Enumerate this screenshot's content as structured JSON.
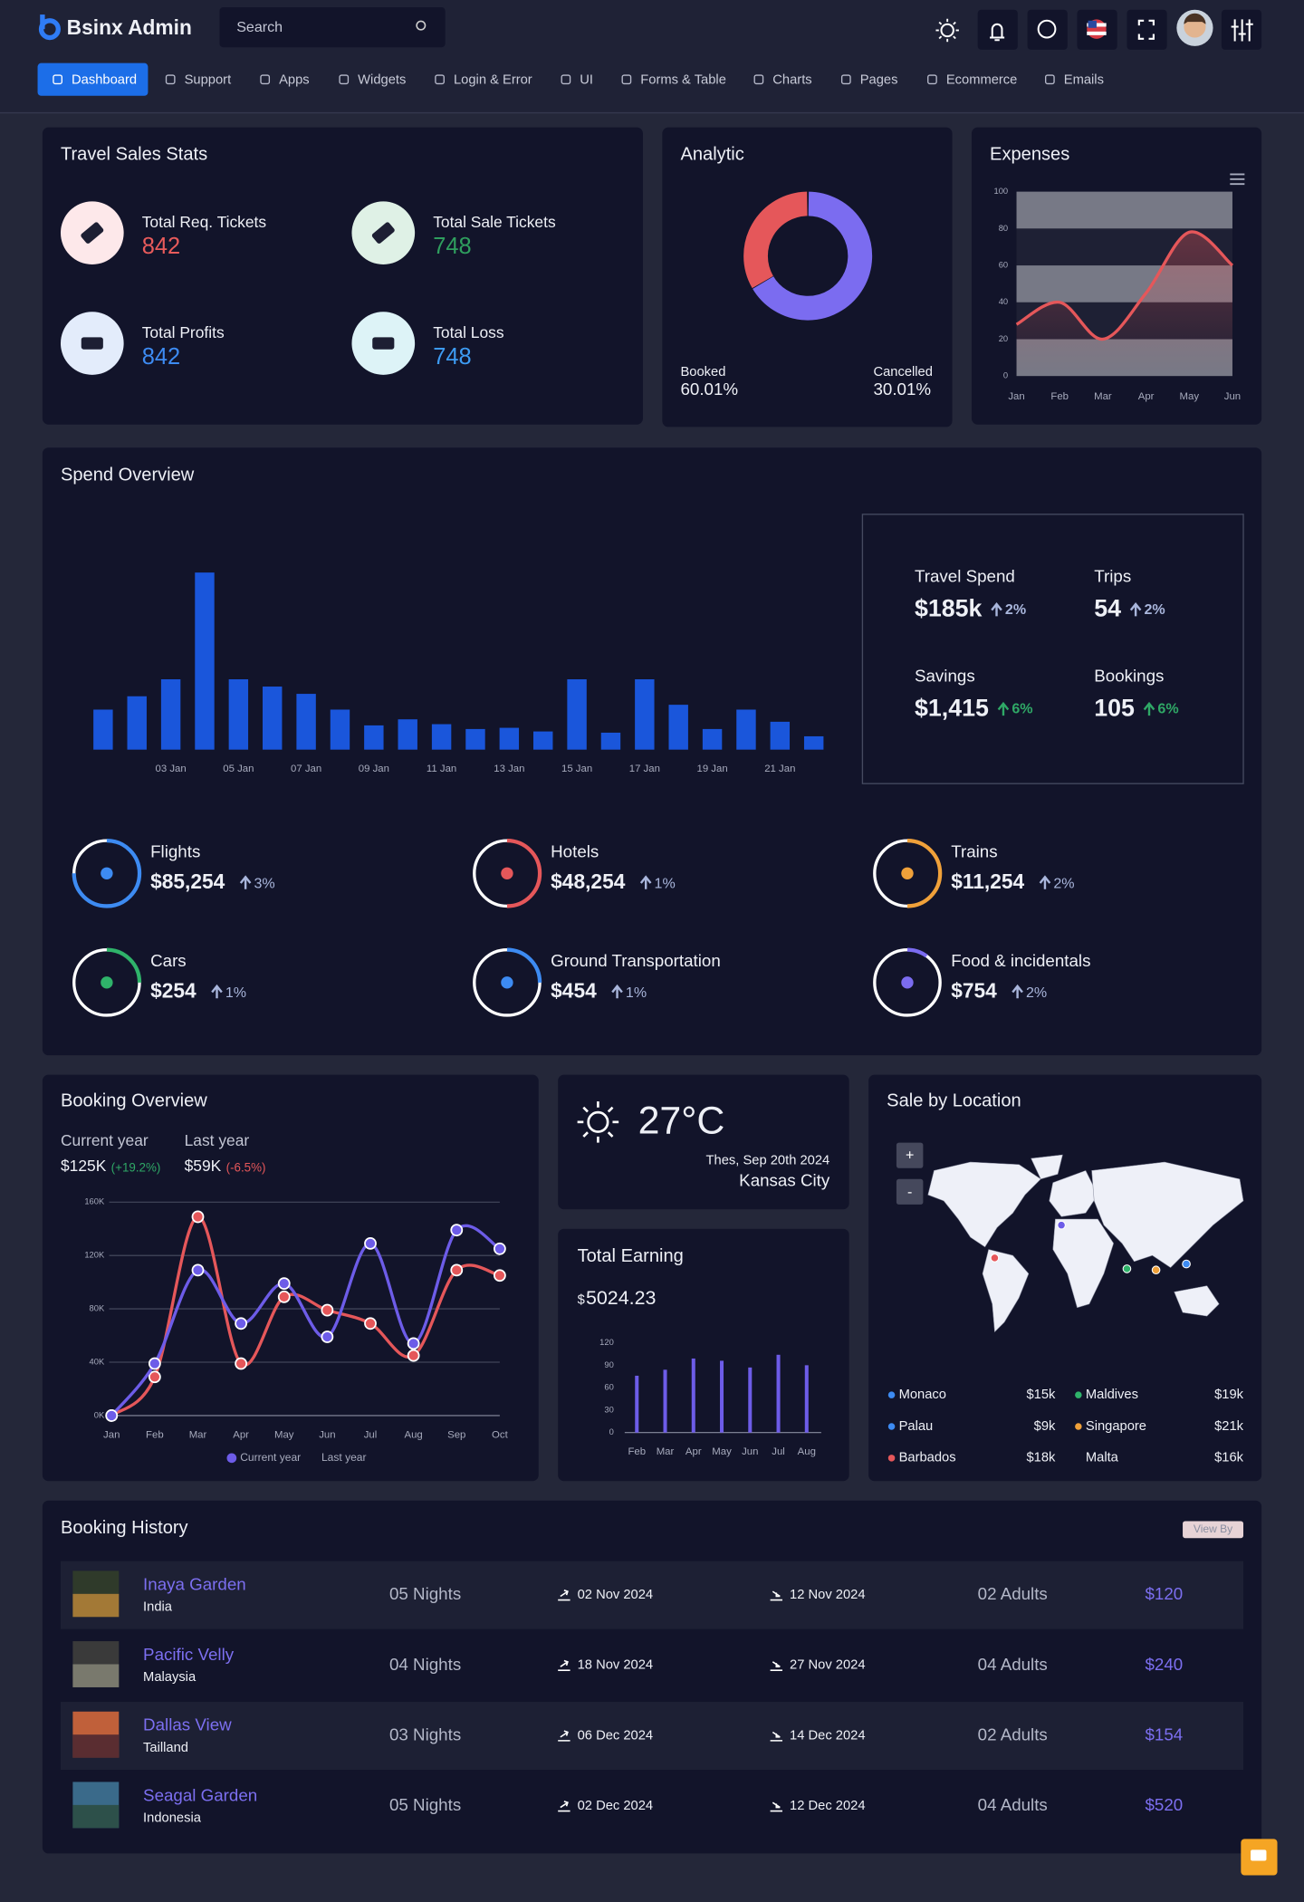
{
  "header": {
    "logo": "Bsinx Admin",
    "search_placeholder": "Search",
    "nav": [
      "Dashboard",
      "Support",
      "Apps",
      "Widgets",
      "Login & Error",
      "UI",
      "Forms & Table",
      "Charts",
      "Pages",
      "Ecommerce",
      "Emails"
    ]
  },
  "travel_sales": {
    "title": "Travel Sales Stats",
    "items": [
      {
        "label": "Total Req. Tickets",
        "value": 842,
        "color": "#e85b5b"
      },
      {
        "label": "Total Sale Tickets",
        "value": 748,
        "color": "#2f9e5e"
      },
      {
        "label": "Total Profits",
        "value": 842,
        "color": "#3d8bf2"
      },
      {
        "label": "Total Loss",
        "value": 748,
        "color": "#3d9bf2"
      }
    ]
  },
  "chart_data": [
    {
      "type": "pie",
      "title": "Analytic",
      "donut": true,
      "categories": [
        "Booked",
        "Cancelled"
      ],
      "values": [
        60.01,
        30.01
      ],
      "value_labels": [
        "60.01%",
        "30.01%"
      ],
      "colors": [
        "#7b6cf0",
        "#e5575a"
      ]
    },
    {
      "type": "line",
      "title": "Expenses",
      "categories": [
        "Jan",
        "Feb",
        "Mar",
        "Apr",
        "May",
        "Jun"
      ],
      "values": [
        28,
        40,
        20,
        45,
        78,
        60
      ],
      "color": "#e5575a",
      "ylim": [
        0,
        100
      ],
      "yticks": [
        0,
        20,
        40,
        60,
        80,
        100
      ],
      "bands": true
    },
    {
      "type": "bar",
      "title": "Spend Overview",
      "categories": [
        null,
        null,
        "03 Jan",
        null,
        "05 Jan",
        null,
        "07 Jan",
        null,
        "09 Jan",
        null,
        "11 Jan",
        null,
        "13 Jan",
        null,
        "15 Jan",
        null,
        "17 Jan",
        null,
        "19 Jan",
        null,
        "21 Jan",
        null
      ],
      "values": [
        33,
        44,
        58,
        146,
        58,
        52,
        46,
        33,
        20,
        25,
        21,
        17,
        18,
        15,
        58,
        14,
        58,
        37,
        17,
        33,
        23,
        11
      ],
      "color": "#1a56db",
      "ylim": [
        0,
        160
      ]
    },
    {
      "type": "line",
      "title": "Booking Overview",
      "categories": [
        "Jan",
        "Feb",
        "Mar",
        "Apr",
        "May",
        "Jun",
        "Jul",
        "Aug",
        "Sep",
        "Oct"
      ],
      "series": [
        {
          "name": "Current year",
          "color": "#6d5ce8",
          "values": [
            0,
            39,
            109,
            69,
            99,
            59,
            129,
            54,
            139,
            125
          ]
        },
        {
          "name": "Last year",
          "color": "#e5575a",
          "values": [
            0,
            29,
            149,
            39,
            89,
            79,
            69,
            45,
            109,
            105
          ]
        }
      ],
      "ylim": [
        0,
        160
      ],
      "yticks": [
        {
          "value": 0,
          "label": "0K"
        },
        {
          "value": 40,
          "label": "40K"
        },
        {
          "value": 80,
          "label": "80K"
        },
        {
          "value": 120,
          "label": "120K"
        },
        {
          "value": 160,
          "label": "160K"
        }
      ],
      "grid": true,
      "legend": "bottom"
    },
    {
      "type": "bar",
      "title": "Total Earning",
      "categories": [
        "Feb",
        "Mar",
        "Apr",
        "May",
        "Jun",
        "Jul",
        "Aug"
      ],
      "values": [
        76,
        84,
        99,
        96,
        87,
        104,
        90
      ],
      "color": "#6d5ce8",
      "ylim": [
        0,
        120
      ],
      "yticks": [
        0,
        30,
        60,
        90,
        120
      ]
    }
  ],
  "spend_stats": [
    {
      "label": "Travel Spend",
      "value": "$185k",
      "change": "2%",
      "change_color": "#a9b6dc"
    },
    {
      "label": "Trips",
      "value": "54",
      "change": "2%",
      "change_color": "#a9b6dc"
    },
    {
      "label": "Savings",
      "value": "$1,415",
      "change": "6%",
      "change_color": "#2fa866"
    },
    {
      "label": "Bookings",
      "value": "105",
      "change": "6%",
      "change_color": "#2fa866"
    }
  ],
  "spend_categories": [
    {
      "label": "Flights",
      "value": "$85,254",
      "change": "3%",
      "color": "#3d8bf2",
      "progress": 75
    },
    {
      "label": "Hotels",
      "value": "$48,254",
      "change": "1%",
      "color": "#e5575a",
      "progress": 50
    },
    {
      "label": "Trains",
      "value": "$11,254",
      "change": "2%",
      "color": "#f0a13a",
      "progress": 50
    },
    {
      "label": "Cars",
      "value": "$254",
      "change": "1%",
      "color": "#2fb36a",
      "progress": 25
    },
    {
      "label": "Ground Transportation",
      "value": "$454",
      "change": "1%",
      "color": "#3d8bf2",
      "progress": 25
    },
    {
      "label": "Food & incidentals",
      "value": "$754",
      "change": "2%",
      "color": "#7b6cf0",
      "progress": 10
    }
  ],
  "booking_summary": [
    {
      "label": "Current year",
      "value": "$125K",
      "change": "(+19.2%)",
      "change_color": "#2fa866"
    },
    {
      "label": "Last year",
      "value": "$59K",
      "change": "(-6.5%)",
      "change_color": "#e5575a"
    }
  ],
  "weather": {
    "temperature": "27°C",
    "date": "Thes, Sep 20th 2024",
    "city": "Kansas City"
  },
  "earning": {
    "currency": "$",
    "amount": "5024.23"
  },
  "sale_by_location": {
    "title": "Sale by Location",
    "zoom_in": "+",
    "zoom_out": "-",
    "locations": [
      {
        "name": "Monaco",
        "value": "$15k",
        "color": "#3d8bf2"
      },
      {
        "name": "Maldives",
        "value": "$19k",
        "color": "#2fb36a"
      },
      {
        "name": "Palau",
        "value": "$9k",
        "color": "#3d8bf2"
      },
      {
        "name": "Singapore",
        "value": "$21k",
        "color": "#f0a13a"
      },
      {
        "name": "Barbados",
        "value": "$18k",
        "color": "#e5575a"
      },
      {
        "name": "Malta",
        "value": "$16k"
      }
    ]
  },
  "booking_history": {
    "title": "Booking History",
    "button": "View By",
    "rows": [
      {
        "name": "Inaya Garden",
        "country": "India",
        "nights": "05 Nights",
        "check_in": "02 Nov 2024",
        "check_out": "12 Nov 2024",
        "guests": "02 Adults",
        "price": "$120"
      },
      {
        "name": "Pacific Velly",
        "country": "Malaysia",
        "nights": "04 Nights",
        "check_in": "18 Nov 2024",
        "check_out": "27 Nov 2024",
        "guests": "04 Adults",
        "price": "$240"
      },
      {
        "name": "Dallas View",
        "country": "Tailland",
        "nights": "03 Nights",
        "check_in": "06 Dec 2024",
        "check_out": "14 Dec 2024",
        "guests": "02 Adults",
        "price": "$154"
      },
      {
        "name": "Seagal Garden",
        "country": "Indonesia",
        "nights": "05 Nights",
        "check_in": "02 Dec 2024",
        "check_out": "12 Dec 2024",
        "guests": "04 Adults",
        "price": "$520"
      }
    ]
  }
}
